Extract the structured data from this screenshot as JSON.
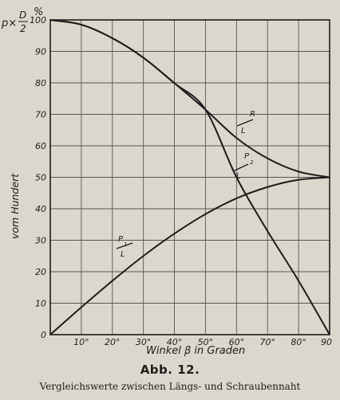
{
  "chart_data": {
    "type": "line",
    "ylabel": "vom Hundert",
    "xlabel": "Winkel β in Graden",
    "unit_label": "p × D/2 %",
    "xlim": [
      0,
      90
    ],
    "ylim": [
      0,
      100
    ],
    "x_ticks": [
      "10°",
      "20°",
      "30°",
      "40°",
      "50°",
      "60°",
      "70°",
      "80°",
      "90"
    ],
    "y_ticks": [
      "0",
      "10",
      "20",
      "30",
      "40",
      "50",
      "60",
      "70",
      "80",
      "90",
      "100"
    ],
    "grid": true,
    "series": [
      {
        "name": "R/L",
        "x": [
          0,
          10,
          20,
          30,
          40,
          50,
          60,
          70,
          80,
          90
        ],
        "y": [
          100,
          98.5,
          94.2,
          88.0,
          79.9,
          71.5,
          62.5,
          56.0,
          51.8,
          50.0
        ]
      },
      {
        "name": "P2/L",
        "x": [
          0,
          10,
          20,
          30,
          40,
          50,
          60,
          70,
          80,
          90
        ],
        "y": [
          100,
          98.5,
          94.2,
          88.0,
          79.9,
          71.5,
          50.0,
          32.9,
          17.1,
          0
        ]
      },
      {
        "name": "P1/L",
        "x": [
          0,
          10,
          20,
          30,
          40,
          50,
          60,
          70,
          80,
          90
        ],
        "y": [
          0,
          8.7,
          17.1,
          25.0,
          32.1,
          38.3,
          43.3,
          46.9,
          49.2,
          50.0
        ]
      }
    ]
  },
  "caption": {
    "title": "Abb. 12.",
    "text": "Vergleichswerte zwischen Längs- und Schraubennaht"
  },
  "curve_labels": {
    "r_num": "R",
    "r_den": "L",
    "p2_num": "P",
    "p2_sub": "2",
    "p2_den": "L",
    "p1_num": "P",
    "p1_sub": "1",
    "p1_den": "L"
  }
}
